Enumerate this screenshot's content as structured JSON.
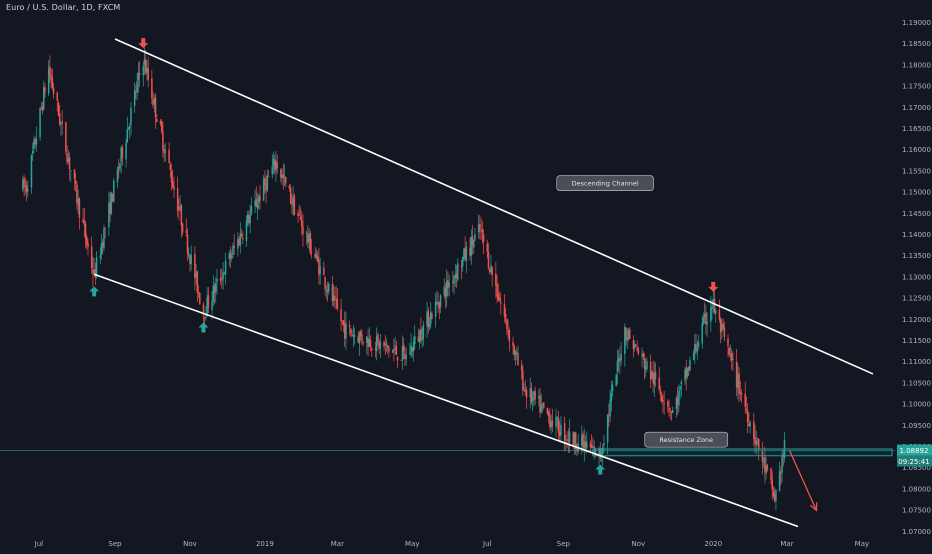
{
  "header": {
    "symbol_title": "Euro / U.S. Dollar, 1D, FXCM"
  },
  "colors": {
    "background": "#131722",
    "up": "#26a69a",
    "down": "#ef5350",
    "axis_text": "#b2b5be",
    "lines": "#ffffff",
    "zone": "#1e9e9e",
    "price_badge": "#26a69a"
  },
  "chart_data": {
    "type": "candlestick",
    "title": "Euro / U.S. Dollar, 1D, FXCM",
    "ylim": [
      1.0683,
      1.1952
    ],
    "y_ticks": [
      "1.19000",
      "1.18500",
      "1.18000",
      "1.17500",
      "1.17000",
      "1.16500",
      "1.16000",
      "1.15500",
      "1.15000",
      "1.14500",
      "1.14000",
      "1.13500",
      "1.13000",
      "1.12500",
      "1.12000",
      "1.11500",
      "1.11000",
      "1.10500",
      "1.10000",
      "1.09500",
      "1.09000",
      "1.08500",
      "1.08000",
      "1.07500",
      "1.07000"
    ],
    "x_ticks": [
      "Jul",
      "Sep",
      "Nov",
      "2019",
      "Mar",
      "May",
      "Jul",
      "Sep",
      "Nov",
      "2020",
      "Mar",
      "May"
    ],
    "x_tick_dates": [
      "2018-07",
      "2018-09",
      "2018-11",
      "2019-01",
      "2019-03",
      "2019-05",
      "2019-07",
      "2019-09",
      "2019-11",
      "2020-01",
      "2020-03",
      "2020-05"
    ],
    "approx_monthly_closes": {
      "months": [
        "2018-06",
        "2018-07",
        "2018-08",
        "2018-09",
        "2018-10",
        "2018-11",
        "2018-12",
        "2019-01",
        "2019-02",
        "2019-03",
        "2019-04",
        "2019-05",
        "2019-06",
        "2019-07",
        "2019-08",
        "2019-09",
        "2019-10",
        "2019-11",
        "2019-12",
        "2020-01",
        "2020-02"
      ],
      "close": [
        1.1685,
        1.169,
        1.16,
        1.1605,
        1.131,
        1.132,
        1.145,
        1.144,
        1.137,
        1.122,
        1.121,
        1.117,
        1.137,
        1.115,
        1.0985,
        1.09,
        1.115,
        1.101,
        1.121,
        1.1095,
        1.089
      ]
    },
    "swing_points": [
      {
        "date": "2018-06-21",
        "price": 1.151,
        "type": "low"
      },
      {
        "date": "2018-07-09",
        "price": 1.179,
        "type": "high"
      },
      {
        "date": "2018-08-15",
        "price": 1.13,
        "type": "low"
      },
      {
        "date": "2018-09-24",
        "price": 1.1815,
        "type": "high"
      },
      {
        "date": "2018-11-12",
        "price": 1.1215,
        "type": "low"
      },
      {
        "date": "2019-01-10",
        "price": 1.157,
        "type": "high"
      },
      {
        "date": "2019-03-07",
        "price": 1.1175,
        "type": "low"
      },
      {
        "date": "2019-04-26",
        "price": 1.111,
        "type": "low"
      },
      {
        "date": "2019-06-25",
        "price": 1.141,
        "type": "high"
      },
      {
        "date": "2019-08-01",
        "price": 1.103,
        "type": "low"
      },
      {
        "date": "2019-09-03",
        "price": 1.0925,
        "type": "low"
      },
      {
        "date": "2019-10-01",
        "price": 1.088,
        "type": "low"
      },
      {
        "date": "2019-10-21",
        "price": 1.1175,
        "type": "high"
      },
      {
        "date": "2019-11-29",
        "price": 1.098,
        "type": "low"
      },
      {
        "date": "2019-12-31",
        "price": 1.124,
        "type": "high"
      },
      {
        "date": "2020-02-20",
        "price": 1.0775,
        "type": "low"
      },
      {
        "date": "2020-02-28",
        "price": 1.0895,
        "type": "high"
      }
    ],
    "descending_channel": {
      "upper": [
        {
          "date": "2018-09-01",
          "price": 1.186
        },
        {
          "date": "2020-05-10",
          "price": 1.107
        }
      ],
      "lower": [
        {
          "date": "2018-08-15",
          "price": 1.1305
        },
        {
          "date": "2020-03-10",
          "price": 1.071
        }
      ]
    },
    "resistance_zone": {
      "from": "2019-09-25",
      "price_low": 1.0877,
      "price_high": 1.0893
    },
    "projection_arrow": {
      "from": {
        "date": "2020-03-03",
        "price": 1.089
      },
      "to": {
        "date": "2020-03-25",
        "price": 1.0748
      }
    },
    "annotations": [
      {
        "text": "Descending Channel",
        "date": "2019-10-05",
        "price": 1.152
      },
      {
        "text": "Resistance Zone",
        "date": "2019-12-10",
        "price": 1.0915
      }
    ],
    "markers": [
      {
        "date": "2018-08-15",
        "price": 1.13,
        "dir": "up",
        "color": "#26a69a"
      },
      {
        "date": "2018-09-24",
        "price": 1.1815,
        "dir": "down",
        "color": "#ef5350"
      },
      {
        "date": "2018-11-12",
        "price": 1.1215,
        "dir": "up",
        "color": "#26a69a"
      },
      {
        "date": "2019-10-01",
        "price": 1.088,
        "dir": "up",
        "color": "#26a69a"
      },
      {
        "date": "2020-01-01",
        "price": 1.124,
        "dir": "down",
        "color": "#ef5350"
      }
    ],
    "current_price": "1.08892",
    "countdown": "09:25:41"
  }
}
